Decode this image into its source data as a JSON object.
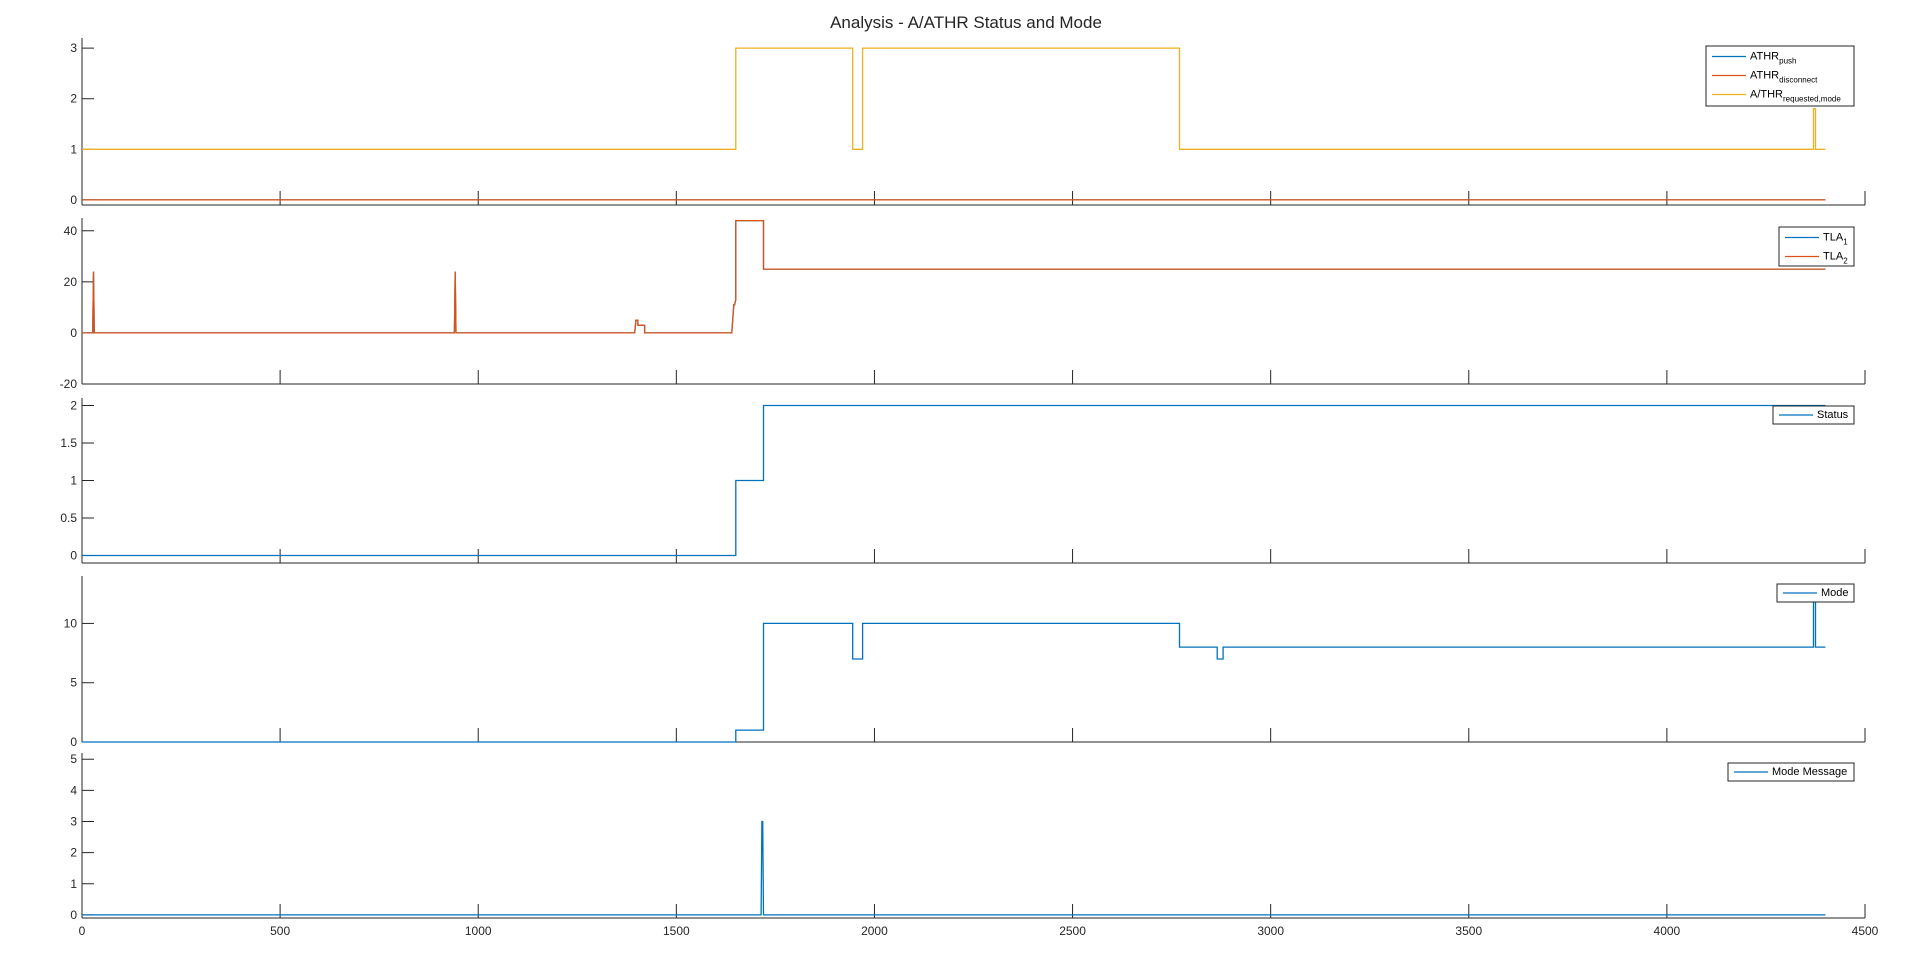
{
  "chart_data": {
    "type": "line",
    "title": "Analysis - A/ATHR Status and Mode",
    "xlim": [
      0,
      4500
    ],
    "xticks": [
      0,
      500,
      1000,
      1500,
      2000,
      2500,
      3000,
      3500,
      4000,
      4500
    ],
    "xtick_labels": [
      "0",
      "500",
      "1000",
      "1500",
      "2000",
      "2500",
      "3000",
      "3500",
      "4000",
      "4500"
    ],
    "grid": false,
    "legend_position": "top-right",
    "colors": {
      "blue": "#0072BD",
      "orange": "#D95319",
      "yellow": "#EDB120",
      "axis": "#262626"
    },
    "panels": [
      {
        "ylim": [
          -0.1,
          3.2
        ],
        "yticks": [
          0,
          1,
          2,
          3
        ],
        "ytick_labels": [
          "0",
          "1",
          "2",
          "3"
        ],
        "series": [
          {
            "base": "ATHR",
            "sub": "push",
            "color": "#0072BD",
            "x": [
              0,
              4400
            ],
            "y": [
              0,
              0
            ]
          },
          {
            "base": "ATHR",
            "sub": "disconnect",
            "color": "#D95319",
            "x": [
              0,
              4400
            ],
            "y": [
              0,
              0
            ]
          },
          {
            "base": "A/THR",
            "sub": "requested,mode",
            "color": "#EDB120",
            "x": [
              0,
              1650,
              1650,
              1945,
              1945,
              1970,
              1970,
              2770,
              2770,
              4370,
              4370,
              4375,
              4375,
              4400
            ],
            "y": [
              1,
              1,
              3,
              3,
              1,
              1,
              3,
              3,
              1,
              1,
              1.8,
              1.8,
              1,
              1
            ]
          }
        ]
      },
      {
        "ylim": [
          -20,
          45
        ],
        "yticks": [
          -20,
          0,
          20,
          40
        ],
        "ytick_labels": [
          "-20",
          "0",
          "20",
          "40"
        ],
        "series": [
          {
            "base": "TLA",
            "sub": "1",
            "color": "#0072BD",
            "x": [
              0,
              27,
              29,
              31,
              940,
              942,
              944,
              1395,
              1398,
              1403,
              1403,
              1420,
              1420,
              1640,
              1645,
              1647,
              1650,
              1650,
              1720,
              1720,
              4400
            ],
            "y": [
              0,
              0,
              24,
              0,
              0,
              24,
              0,
              0,
              5,
              5,
              3,
              3,
              0,
              0,
              11,
              11,
              13,
              44,
              44,
              25,
              25
            ]
          },
          {
            "base": "TLA",
            "sub": "2",
            "color": "#D95319",
            "x": [
              0,
              27,
              29,
              31,
              940,
              942,
              944,
              1395,
              1398,
              1403,
              1403,
              1420,
              1420,
              1640,
              1645,
              1647,
              1650,
              1650,
              1720,
              1720,
              4400
            ],
            "y": [
              0,
              0,
              24,
              0,
              0,
              24,
              0,
              0,
              5,
              5,
              3,
              3,
              0,
              0,
              11,
              11,
              13,
              44,
              44,
              25,
              25
            ]
          }
        ]
      },
      {
        "ylim": [
          -0.1,
          2.1
        ],
        "yticks": [
          0,
          0.5,
          1,
          1.5,
          2
        ],
        "ytick_labels": [
          "0",
          "0.5",
          "1",
          "1.5",
          "2"
        ],
        "series": [
          {
            "base": "Status",
            "sub": "",
            "color": "#0072BD",
            "x": [
              0,
              1650,
              1650,
              1720,
              1720,
              4400
            ],
            "y": [
              0,
              0,
              1,
              1,
              2,
              2
            ]
          }
        ]
      },
      {
        "ylim": [
          0,
          14
        ],
        "yticks": [
          0,
          5,
          10
        ],
        "ytick_labels": [
          "0",
          "5",
          "10"
        ],
        "series": [
          {
            "base": "Mode",
            "sub": "",
            "color": "#0072BD",
            "x": [
              0,
              1650,
              1650,
              1720,
              1720,
              1945,
              1945,
              1970,
              1970,
              2770,
              2770,
              2865,
              2865,
              2880,
              2880,
              4370,
              4370,
              4375,
              4375,
              4400
            ],
            "y": [
              0,
              0,
              1,
              1,
              10,
              10,
              7,
              7,
              10,
              10,
              8,
              8,
              7,
              7,
              8,
              8,
              12,
              12,
              8,
              8
            ]
          }
        ]
      },
      {
        "ylim": [
          -0.1,
          5.2
        ],
        "yticks": [
          0,
          1,
          2,
          3,
          4,
          5
        ],
        "ytick_labels": [
          "0",
          "1",
          "2",
          "3",
          "4",
          "5"
        ],
        "series": [
          {
            "base": "Mode Message",
            "sub": "",
            "color": "#0072BD",
            "x": [
              0,
              1714,
              1716,
              1718,
              1720,
              4400
            ],
            "y": [
              0,
              0,
              3,
              3,
              0,
              0
            ]
          }
        ]
      }
    ]
  }
}
